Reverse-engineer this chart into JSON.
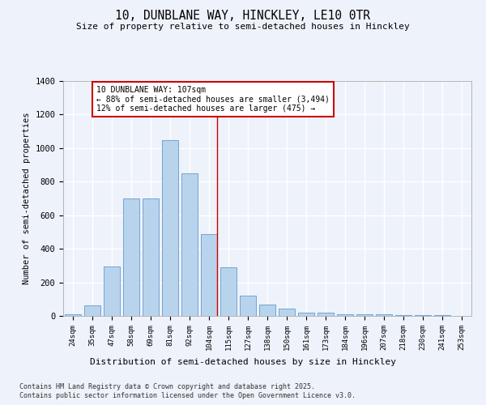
{
  "title": "10, DUNBLANE WAY, HINCKLEY, LE10 0TR",
  "subtitle": "Size of property relative to semi-detached houses in Hinckley",
  "xlabel": "Distribution of semi-detached houses by size in Hinckley",
  "ylabel": "Number of semi-detached properties",
  "bar_color": "#b8d4ed",
  "bar_edge_color": "#6699cc",
  "background_color": "#eef2fa",
  "grid_color": "#ffffff",
  "categories": [
    "24sqm",
    "35sqm",
    "47sqm",
    "58sqm",
    "69sqm",
    "81sqm",
    "92sqm",
    "104sqm",
    "115sqm",
    "127sqm",
    "138sqm",
    "150sqm",
    "161sqm",
    "173sqm",
    "184sqm",
    "196sqm",
    "207sqm",
    "218sqm",
    "230sqm",
    "241sqm",
    "253sqm"
  ],
  "values": [
    10,
    65,
    295,
    700,
    700,
    1050,
    850,
    490,
    290,
    120,
    70,
    45,
    20,
    20,
    10,
    10,
    8,
    5,
    5,
    3,
    2
  ],
  "ylim": [
    0,
    1400
  ],
  "yticks": [
    0,
    200,
    400,
    600,
    800,
    1000,
    1200,
    1400
  ],
  "property_line_index": 7,
  "property_line_color": "#cc0000",
  "annotation_text": "10 DUNBLANE WAY: 107sqm\n← 88% of semi-detached houses are smaller (3,494)\n12% of semi-detached houses are larger (475) →",
  "annotation_box_color": "#ffffff",
  "annotation_box_edge": "#cc0000",
  "footer_line1": "Contains HM Land Registry data © Crown copyright and database right 2025.",
  "footer_line2": "Contains public sector information licensed under the Open Government Licence v3.0."
}
